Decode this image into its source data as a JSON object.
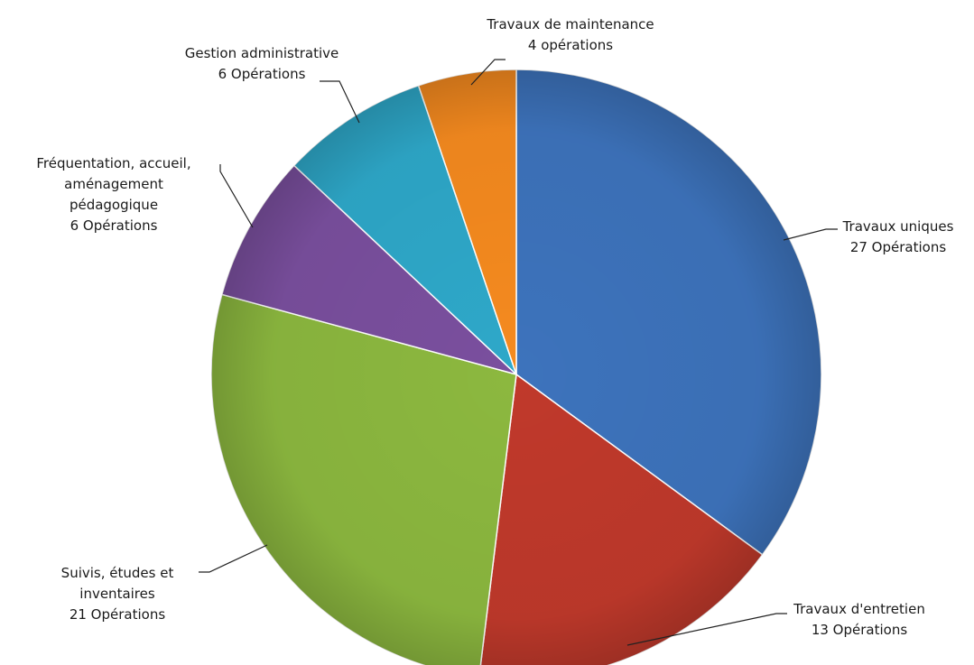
{
  "chart_data": {
    "type": "pie",
    "title": "",
    "unit": "opérations",
    "slices": [
      {
        "label_lines": [
          "Travaux uniques",
          "27 Opérations"
        ],
        "value": 27,
        "color": "#3d73bc"
      },
      {
        "label_lines": [
          "Travaux d'entretien",
          "13 Opérations"
        ],
        "value": 13,
        "color": "#c0392b"
      },
      {
        "label_lines": [
          "Suivis, études et",
          "inventaires",
          "21 Opérations"
        ],
        "value": 21,
        "color": "#8cb83f"
      },
      {
        "label_lines": [
          "Fréquentation, accueil,",
          "aménagement",
          "pédagogique",
          "6 Opérations"
        ],
        "value": 6,
        "color": "#7a4f9e"
      },
      {
        "label_lines": [
          "Gestion administrative",
          "6  Opérations"
        ],
        "value": 6,
        "color": "#2ea8c9"
      },
      {
        "label_lines": [
          "Travaux de maintenance",
          "4 opérations"
        ],
        "value": 4,
        "color": "#f58a1f"
      }
    ]
  }
}
